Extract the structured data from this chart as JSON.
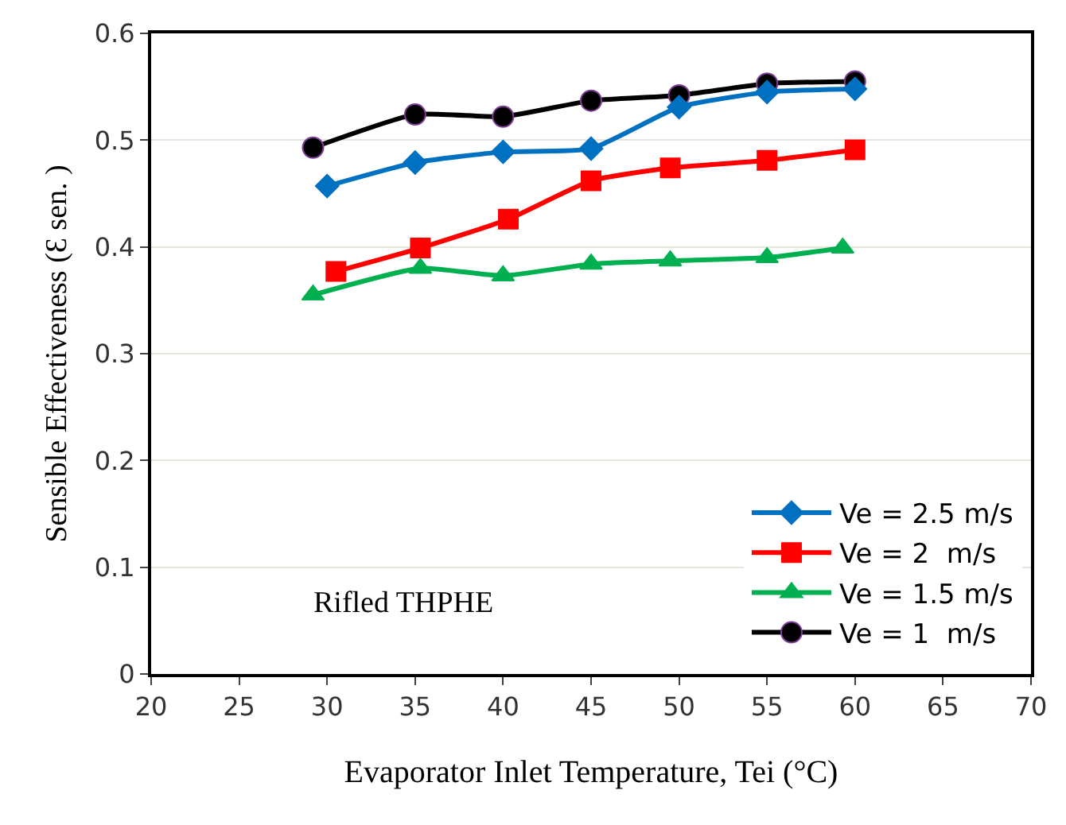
{
  "chart_data": {
    "type": "line",
    "xlabel": "Evaporator Inlet Temperature, Tei (°C)",
    "ylabel": "Sensible Effectiveness (Ɛ sen. )",
    "xlim": [
      20,
      70
    ],
    "xticks": [
      20,
      25,
      30,
      35,
      40,
      45,
      50,
      55,
      60,
      65,
      70
    ],
    "ylim": [
      0,
      0.6
    ],
    "yticks": [
      0,
      0.1,
      0.2,
      0.3,
      0.4,
      0.5,
      0.6
    ],
    "grid": "y",
    "legend": "bottom right",
    "annotations": [
      "Rifled THPHE"
    ],
    "series": [
      {
        "name": "Ve = 2.5 m/s",
        "color": "#0070c0",
        "marker": "diamond",
        "x": [
          30,
          35,
          40,
          45,
          50,
          55,
          60
        ],
        "values": [
          0.457,
          0.479,
          0.489,
          0.492,
          0.531,
          0.545,
          0.548
        ]
      },
      {
        "name": "Ve = 2  m/s",
        "color": "#ff0000",
        "marker": "square",
        "x": [
          30.5,
          35.3,
          40.3,
          45,
          49.5,
          55,
          60
        ],
        "values": [
          0.377,
          0.399,
          0.426,
          0.462,
          0.474,
          0.481,
          0.491
        ]
      },
      {
        "name": "Ve = 1.5 m/s",
        "color": "#00b050",
        "marker": "triangle",
        "x": [
          29.2,
          35.3,
          40,
          45,
          49.5,
          55,
          59.3
        ],
        "values": [
          0.355,
          0.38,
          0.373,
          0.384,
          0.387,
          0.39,
          0.399
        ]
      },
      {
        "name": "Ve = 1  m/s",
        "color": "#000000",
        "marker": "circle",
        "x": [
          29.2,
          35,
          40,
          45,
          50,
          55,
          60
        ],
        "values": [
          0.493,
          0.524,
          0.522,
          0.537,
          0.542,
          0.553,
          0.555
        ]
      }
    ]
  }
}
